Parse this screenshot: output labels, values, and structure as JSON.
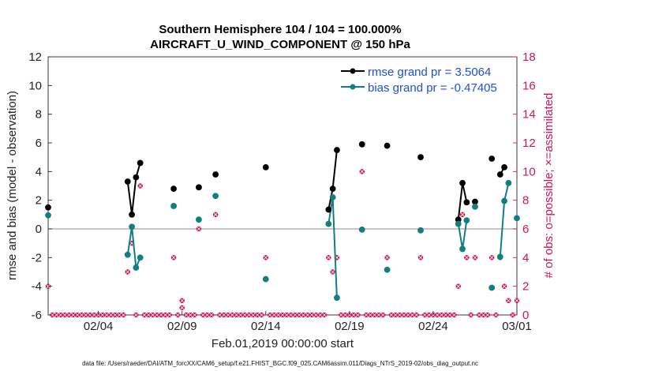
{
  "chart_data": {
    "type": "line",
    "title_line1": "Southern Hemisphere 104 / 104 = 100.000%",
    "title_line2": "AIRCRAFT_U_WIND_COMPONENT @ 150 hPa",
    "xlabel": "Feb.01,2019 00:00:00 start",
    "ylabel": "rmse and bias (model - observation)",
    "y2label": "# of obs: o=possible; ×=assimilated",
    "footnote": "data file: /Users/raeder/DAI/ATM_forcXX/CAM6_setup/f.e21.FHIST_BGC.f09_025.CAM6assim.011/Diags_NTrS_2019-02/obs_diag_output.nc",
    "xlim": [
      1,
      29
    ],
    "ylim": [
      -6,
      12
    ],
    "y2lim": [
      0,
      18
    ],
    "xticks": [
      {
        "value": 4,
        "label": "02/04"
      },
      {
        "value": 9,
        "label": "02/09"
      },
      {
        "value": 14,
        "label": "02/14"
      },
      {
        "value": 19,
        "label": "02/19"
      },
      {
        "value": 24,
        "label": "02/24"
      },
      {
        "value": 29,
        "label": "03/01"
      }
    ],
    "yticks": [
      {
        "value": -6,
        "label": "-6"
      },
      {
        "value": -4,
        "label": "-4"
      },
      {
        "value": -2,
        "label": "-2"
      },
      {
        "value": 0,
        "label": "0"
      },
      {
        "value": 2,
        "label": "2"
      },
      {
        "value": 4,
        "label": "4"
      },
      {
        "value": 6,
        "label": "6"
      },
      {
        "value": 8,
        "label": "8"
      },
      {
        "value": 10,
        "label": "10"
      },
      {
        "value": 12,
        "label": "12"
      }
    ],
    "y2ticks": [
      {
        "value": 0,
        "label": "0"
      },
      {
        "value": 2,
        "label": "2"
      },
      {
        "value": 4,
        "label": "4"
      },
      {
        "value": 6,
        "label": "6"
      },
      {
        "value": 8,
        "label": "8"
      },
      {
        "value": 10,
        "label": "10"
      },
      {
        "value": 12,
        "label": "12"
      },
      {
        "value": 14,
        "label": "14"
      },
      {
        "value": 16,
        "label": "16"
      },
      {
        "value": 18,
        "label": "18"
      }
    ],
    "zero_line": 0,
    "series": [
      {
        "name": "rmse",
        "legend": "rmse grand pr = 3.5064",
        "color": "#000000",
        "points": [
          [
            1.0,
            1.5
          ],
          [
            5.75,
            3.3
          ],
          [
            6.0,
            1.0
          ],
          [
            6.25,
            3.6
          ],
          [
            6.5,
            4.6
          ],
          [
            8.5,
            2.8
          ],
          [
            10.0,
            2.9
          ],
          [
            11.0,
            3.8
          ],
          [
            14.0,
            4.3
          ],
          [
            17.75,
            1.35
          ],
          [
            18.0,
            2.8
          ],
          [
            18.25,
            5.5
          ],
          [
            19.75,
            5.9
          ],
          [
            21.25,
            5.8
          ],
          [
            23.25,
            5.0
          ],
          [
            25.5,
            0.65
          ],
          [
            25.75,
            3.2
          ],
          [
            26.0,
            1.85
          ],
          [
            26.5,
            1.9
          ],
          [
            27.5,
            4.9
          ],
          [
            28.0,
            3.8
          ],
          [
            28.25,
            4.3
          ]
        ],
        "segments": [
          [
            [
              5.75,
              3.3
            ],
            [
              6.0,
              1.0
            ],
            [
              6.25,
              3.6
            ],
            [
              6.5,
              4.6
            ]
          ],
          [
            [
              17.75,
              1.35
            ],
            [
              18.0,
              2.8
            ],
            [
              18.25,
              5.5
            ]
          ],
          [
            [
              25.5,
              0.65
            ],
            [
              25.75,
              3.2
            ],
            [
              26.0,
              1.85
            ]
          ],
          [
            [
              28.0,
              3.8
            ],
            [
              28.25,
              4.3
            ]
          ]
        ]
      },
      {
        "name": "bias",
        "legend": "bias grand pr = -0.47405",
        "color": "#0f7f80",
        "points": [
          [
            1.0,
            0.95
          ],
          [
            5.75,
            -1.8
          ],
          [
            6.0,
            0.15
          ],
          [
            6.25,
            -2.7
          ],
          [
            6.5,
            -2.0
          ],
          [
            8.5,
            1.6
          ],
          [
            10.0,
            0.65
          ],
          [
            11.0,
            2.3
          ],
          [
            14.0,
            -3.5
          ],
          [
            17.75,
            0.35
          ],
          [
            18.0,
            2.2
          ],
          [
            18.25,
            -4.8
          ],
          [
            19.75,
            -0.05
          ],
          [
            21.25,
            -2.85
          ],
          [
            23.25,
            -0.1
          ],
          [
            25.5,
            0.35
          ],
          [
            25.75,
            -1.4
          ],
          [
            26.0,
            0.6
          ],
          [
            26.5,
            1.55
          ],
          [
            27.5,
            -4.1
          ],
          [
            28.0,
            -1.95
          ],
          [
            28.25,
            1.95
          ],
          [
            28.5,
            3.2
          ],
          [
            29.0,
            0.75
          ]
        ],
        "segments": [
          [
            [
              5.75,
              -1.8
            ],
            [
              6.0,
              0.15
            ],
            [
              6.25,
              -2.7
            ],
            [
              6.5,
              -2.0
            ]
          ],
          [
            [
              17.75,
              0.35
            ],
            [
              18.0,
              2.2
            ],
            [
              18.25,
              -4.8
            ]
          ],
          [
            [
              25.5,
              0.35
            ],
            [
              25.75,
              -1.4
            ],
            [
              26.0,
              0.6
            ]
          ],
          [
            [
              28.0,
              -1.95
            ],
            [
              28.25,
              1.95
            ],
            [
              28.5,
              3.2
            ]
          ]
        ]
      }
    ],
    "obs_counts": {
      "color": "#cc1559",
      "nonzero": [
        [
          1.0,
          2
        ],
        [
          5.75,
          3
        ],
        [
          6.0,
          5
        ],
        [
          6.5,
          9
        ],
        [
          8.5,
          4
        ],
        [
          9.0,
          1
        ],
        [
          9.0,
          0.5
        ],
        [
          10.0,
          6
        ],
        [
          11.0,
          7
        ],
        [
          14.0,
          4
        ],
        [
          17.75,
          4
        ],
        [
          18.0,
          3
        ],
        [
          18.25,
          4
        ],
        [
          19.75,
          10
        ],
        [
          21.25,
          4
        ],
        [
          23.25,
          4
        ],
        [
          25.5,
          2
        ],
        [
          25.75,
          7
        ],
        [
          26.0,
          4
        ],
        [
          26.5,
          4
        ],
        [
          27.5,
          4
        ],
        [
          28.0,
          4
        ],
        [
          28.25,
          2
        ],
        [
          28.5,
          1
        ],
        [
          29.0,
          1
        ]
      ],
      "zero_start": 1.0,
      "zero_end": 29.0,
      "zero_step": 0.25
    }
  }
}
